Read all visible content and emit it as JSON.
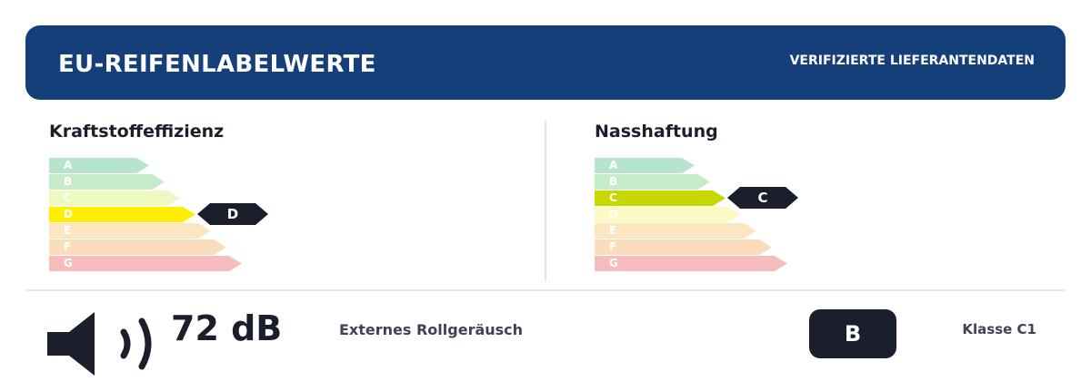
{
  "header": {
    "title": "EU-REIFENLABELWERTE",
    "badge": "VERIFIZIERTE LIEFERANTENDATEN",
    "color": "#143f78"
  },
  "fuel": {
    "title": "Kraftstoffeffizienz",
    "rating": "D",
    "bars": [
      {
        "label": "A",
        "color": "#b7e4cc"
      },
      {
        "label": "B",
        "color": "#c6ebc9"
      },
      {
        "label": "C",
        "color": "#eef8c1"
      },
      {
        "label": "D",
        "color": "#ffee00"
      },
      {
        "label": "E",
        "color": "#fbe6c0"
      },
      {
        "label": "F",
        "color": "#fbdcbc"
      },
      {
        "label": "G",
        "color": "#f7bcbc"
      }
    ]
  },
  "wet": {
    "title": "Nasshaftung",
    "rating": "C",
    "bars": [
      {
        "label": "A",
        "color": "#b7e4cc"
      },
      {
        "label": "B",
        "color": "#c6ebc9"
      },
      {
        "label": "C",
        "color": "#c6d800"
      },
      {
        "label": "D",
        "color": "#fdfbc4"
      },
      {
        "label": "E",
        "color": "#fbe6c0"
      },
      {
        "label": "F",
        "color": "#fbdcbc"
      },
      {
        "label": "G",
        "color": "#f7bcbc"
      }
    ]
  },
  "noise": {
    "value": "72 dB",
    "label": "Externes Rollgeräusch",
    "class": "B",
    "icon": "speaker-icon"
  },
  "tyre_class": "Klasse C1"
}
